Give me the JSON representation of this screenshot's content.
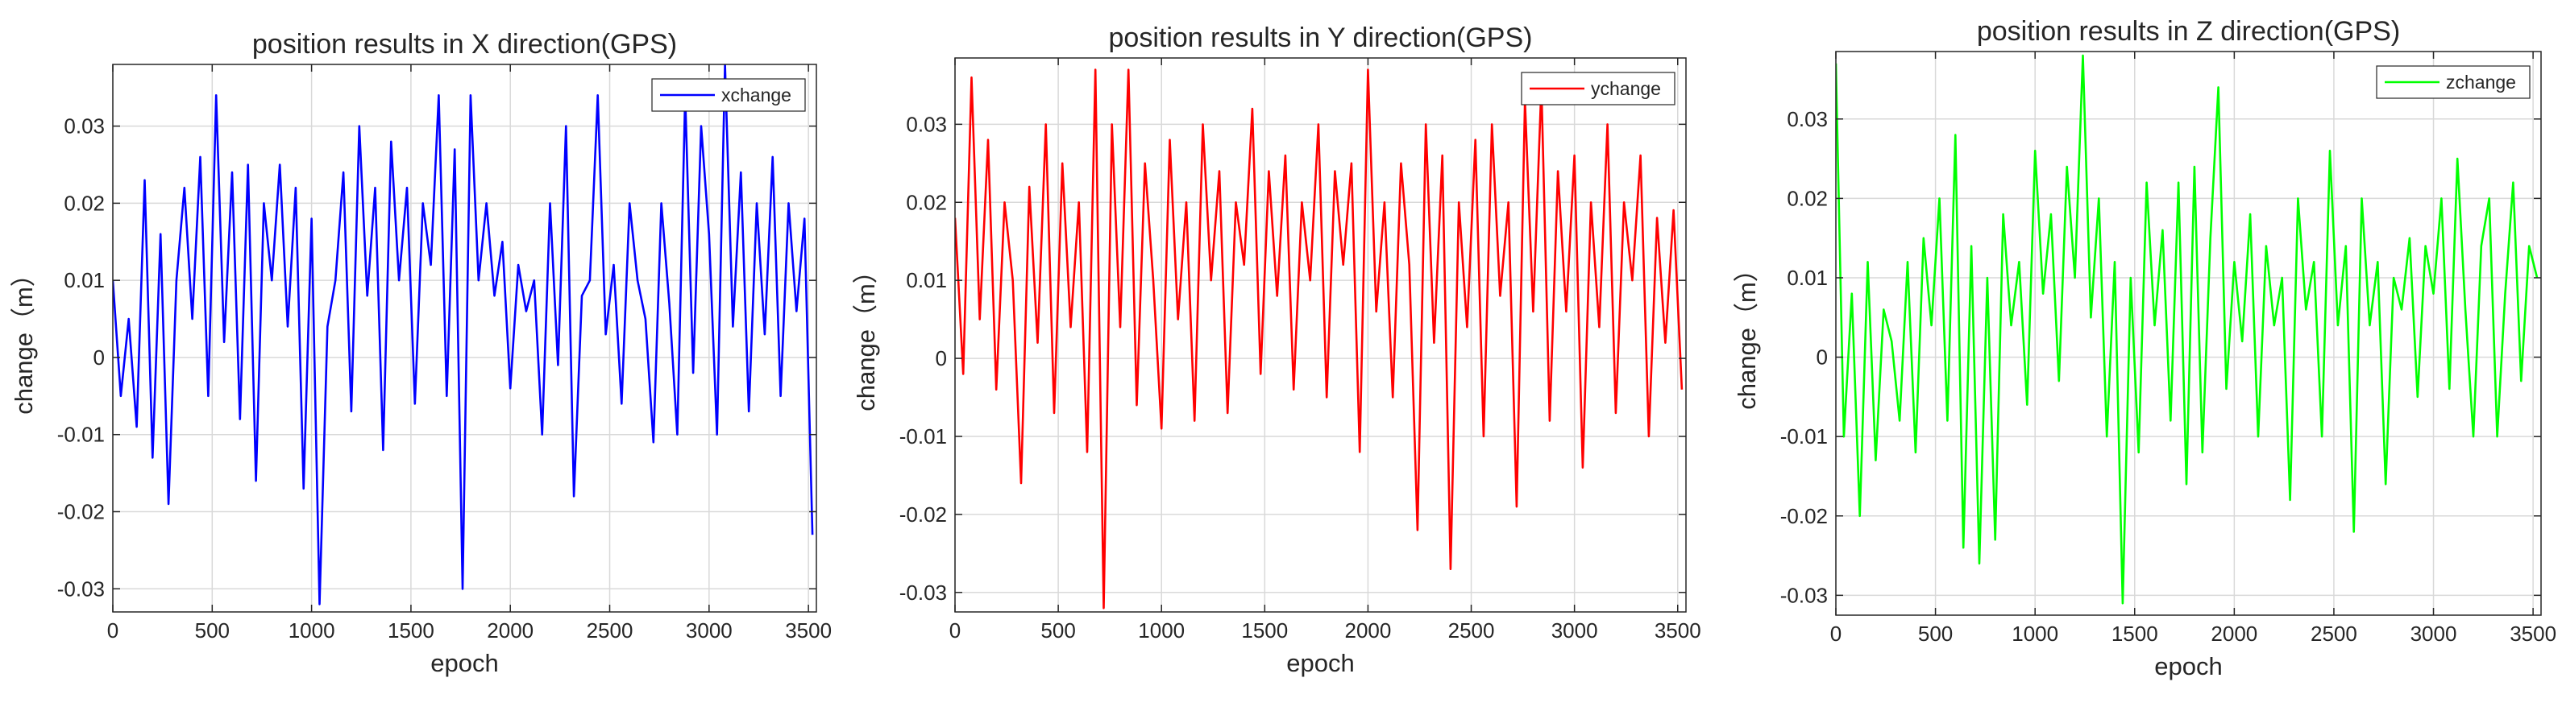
{
  "chart_data": [
    {
      "type": "line",
      "title": "position results in X direction(GPS)",
      "xlabel": "epoch",
      "ylabel": "change（m）",
      "xlim": [
        0,
        3540
      ],
      "ylim": [
        -0.033,
        0.038
      ],
      "xticks": [
        0,
        500,
        1000,
        1500,
        2000,
        2500,
        3000,
        3500
      ],
      "xtick_labels": [
        "0",
        "500",
        "1000",
        "1500",
        "2000",
        "2500",
        "3000",
        "3500"
      ],
      "yticks": [
        -0.03,
        -0.02,
        -0.01,
        0,
        0.01,
        0.02,
        0.03
      ],
      "ytick_labels": [
        "-0.03",
        "-0.02",
        "-0.01",
        "0",
        "0.01",
        "0.02",
        "0.03"
      ],
      "grid": true,
      "legend_position": "top-right",
      "series": [
        {
          "name": "xchange",
          "color": "#0000ff",
          "x": [
            0,
            40,
            80,
            120,
            160,
            200,
            240,
            280,
            320,
            360,
            400,
            440,
            480,
            520,
            560,
            600,
            640,
            680,
            720,
            760,
            800,
            840,
            880,
            920,
            960,
            1000,
            1040,
            1080,
            1120,
            1160,
            1200,
            1240,
            1280,
            1320,
            1360,
            1400,
            1440,
            1480,
            1520,
            1560,
            1600,
            1640,
            1680,
            1720,
            1760,
            1800,
            1840,
            1880,
            1920,
            1960,
            2000,
            2040,
            2080,
            2120,
            2160,
            2200,
            2240,
            2280,
            2320,
            2360,
            2400,
            2440,
            2480,
            2520,
            2560,
            2600,
            2640,
            2680,
            2720,
            2760,
            2800,
            2840,
            2880,
            2920,
            2960,
            3000,
            3040,
            3080,
            3120,
            3160,
            3200,
            3240,
            3280,
            3320,
            3360,
            3400,
            3440,
            3480,
            3520
          ],
          "y": [
            0.01,
            -0.005,
            0.005,
            -0.009,
            0.023,
            -0.013,
            0.016,
            -0.019,
            0.01,
            0.022,
            0.005,
            0.026,
            -0.005,
            0.034,
            0.002,
            0.024,
            -0.008,
            0.025,
            -0.016,
            0.02,
            0.01,
            0.025,
            0.004,
            0.022,
            -0.017,
            0.018,
            -0.032,
            0.004,
            0.01,
            0.024,
            -0.007,
            0.03,
            0.008,
            0.022,
            -0.012,
            0.028,
            0.01,
            0.022,
            -0.006,
            0.02,
            0.012,
            0.034,
            -0.005,
            0.027,
            -0.03,
            0.034,
            0.01,
            0.02,
            0.008,
            0.015,
            -0.004,
            0.012,
            0.006,
            0.01,
            -0.01,
            0.02,
            -0.001,
            0.03,
            -0.018,
            0.008,
            0.01,
            0.034,
            0.003,
            0.012,
            -0.006,
            0.02,
            0.01,
            0.005,
            -0.011,
            0.02,
            0.007,
            -0.01,
            0.034,
            -0.002,
            0.03,
            0.016,
            -0.01,
            0.038,
            0.004,
            0.024,
            -0.007,
            0.02,
            0.003,
            0.026,
            -0.005,
            0.02,
            0.006,
            0.018,
            -0.023
          ]
        }
      ]
    },
    {
      "type": "line",
      "title": "position results in Y direction(GPS)",
      "xlabel": "epoch",
      "ylabel": "change（m）",
      "xlim": [
        0,
        3540
      ],
      "ylim": [
        -0.0325,
        0.0385
      ],
      "xticks": [
        0,
        500,
        1000,
        1500,
        2000,
        2500,
        3000,
        3500
      ],
      "xtick_labels": [
        "0",
        "500",
        "1000",
        "1500",
        "2000",
        "2500",
        "3000",
        "3500"
      ],
      "yticks": [
        -0.03,
        -0.02,
        -0.01,
        0,
        0.01,
        0.02,
        0.03
      ],
      "ytick_labels": [
        "-0.03",
        "-0.02",
        "-0.01",
        "0",
        "0.01",
        "0.02",
        "0.03"
      ],
      "grid": true,
      "legend_position": "top-right",
      "series": [
        {
          "name": "ychange",
          "color": "#ff0000",
          "x": [
            0,
            40,
            80,
            120,
            160,
            200,
            240,
            280,
            320,
            360,
            400,
            440,
            480,
            520,
            560,
            600,
            640,
            680,
            720,
            760,
            800,
            840,
            880,
            920,
            960,
            1000,
            1040,
            1080,
            1120,
            1160,
            1200,
            1240,
            1280,
            1320,
            1360,
            1400,
            1440,
            1480,
            1520,
            1560,
            1600,
            1640,
            1680,
            1720,
            1760,
            1800,
            1840,
            1880,
            1920,
            1960,
            2000,
            2040,
            2080,
            2120,
            2160,
            2200,
            2240,
            2280,
            2320,
            2360,
            2400,
            2440,
            2480,
            2520,
            2560,
            2600,
            2640,
            2680,
            2720,
            2760,
            2800,
            2840,
            2880,
            2920,
            2960,
            3000,
            3040,
            3080,
            3120,
            3160,
            3200,
            3240,
            3280,
            3320,
            3360,
            3400,
            3440,
            3480,
            3520
          ],
          "y": [
            0.018,
            -0.002,
            0.036,
            0.005,
            0.028,
            -0.004,
            0.02,
            0.01,
            -0.016,
            0.022,
            0.002,
            0.03,
            -0.007,
            0.025,
            0.004,
            0.02,
            -0.012,
            0.037,
            -0.032,
            0.03,
            0.004,
            0.037,
            -0.006,
            0.025,
            0.01,
            -0.009,
            0.028,
            0.005,
            0.02,
            -0.008,
            0.03,
            0.01,
            0.024,
            -0.007,
            0.02,
            0.012,
            0.032,
            -0.002,
            0.024,
            0.008,
            0.026,
            -0.004,
            0.02,
            0.01,
            0.03,
            -0.005,
            0.024,
            0.012,
            0.025,
            -0.012,
            0.037,
            0.006,
            0.02,
            -0.005,
            0.025,
            0.012,
            -0.022,
            0.03,
            0.002,
            0.026,
            -0.027,
            0.02,
            0.004,
            0.028,
            -0.01,
            0.03,
            0.008,
            0.02,
            -0.019,
            0.033,
            0.006,
            0.035,
            -0.008,
            0.024,
            0.006,
            0.026,
            -0.014,
            0.02,
            0.004,
            0.03,
            -0.007,
            0.02,
            0.01,
            0.026,
            -0.01,
            0.018,
            0.002,
            0.019,
            -0.004
          ]
        }
      ]
    },
    {
      "type": "line",
      "title": "position results in Z direction(GPS)",
      "xlabel": "epoch",
      "ylabel": "change（m）",
      "xlim": [
        0,
        3540
      ],
      "ylim": [
        -0.0325,
        0.0385
      ],
      "xticks": [
        0,
        500,
        1000,
        1500,
        2000,
        2500,
        3000,
        3500
      ],
      "xtick_labels": [
        "0",
        "500",
        "1000",
        "1500",
        "2000",
        "2500",
        "3000",
        "3500"
      ],
      "yticks": [
        -0.03,
        -0.02,
        -0.01,
        0,
        0.01,
        0.02,
        0.03
      ],
      "ytick_labels": [
        "-0.03",
        "-0.02",
        "-0.01",
        "0",
        "0.01",
        "0.02",
        "0.03"
      ],
      "grid": true,
      "legend_position": "top-right",
      "series": [
        {
          "name": "zchange",
          "color": "#00ff00",
          "x": [
            0,
            40,
            80,
            120,
            160,
            200,
            240,
            280,
            320,
            360,
            400,
            440,
            480,
            520,
            560,
            600,
            640,
            680,
            720,
            760,
            800,
            840,
            880,
            920,
            960,
            1000,
            1040,
            1080,
            1120,
            1160,
            1200,
            1240,
            1280,
            1320,
            1360,
            1400,
            1440,
            1480,
            1520,
            1560,
            1600,
            1640,
            1680,
            1720,
            1760,
            1800,
            1840,
            1880,
            1920,
            1960,
            2000,
            2040,
            2080,
            2120,
            2160,
            2200,
            2240,
            2280,
            2320,
            2360,
            2400,
            2440,
            2480,
            2520,
            2560,
            2600,
            2640,
            2680,
            2720,
            2760,
            2800,
            2840,
            2880,
            2920,
            2960,
            3000,
            3040,
            3080,
            3120,
            3160,
            3200,
            3240,
            3280,
            3320,
            3360,
            3400,
            3440,
            3480,
            3520
          ],
          "y": [
            0.037,
            -0.01,
            0.008,
            -0.02,
            0.012,
            -0.013,
            0.006,
            0.002,
            -0.008,
            0.012,
            -0.012,
            0.015,
            0.004,
            0.02,
            -0.008,
            0.028,
            -0.024,
            0.014,
            -0.026,
            0.01,
            -0.023,
            0.018,
            0.004,
            0.012,
            -0.006,
            0.026,
            0.008,
            0.018,
            -0.003,
            0.024,
            0.01,
            0.038,
            0.005,
            0.02,
            -0.01,
            0.012,
            -0.031,
            0.01,
            -0.012,
            0.022,
            0.004,
            0.016,
            -0.008,
            0.022,
            -0.016,
            0.024,
            -0.012,
            0.015,
            0.034,
            -0.004,
            0.012,
            0.002,
            0.018,
            -0.01,
            0.014,
            0.004,
            0.01,
            -0.018,
            0.02,
            0.006,
            0.012,
            -0.01,
            0.026,
            0.004,
            0.014,
            -0.022,
            0.02,
            0.004,
            0.012,
            -0.016,
            0.01,
            0.006,
            0.015,
            -0.005,
            0.014,
            0.008,
            0.02,
            -0.004,
            0.025,
            0.006,
            -0.01,
            0.014,
            0.02,
            -0.01,
            0.008,
            0.022,
            -0.003,
            0.014,
            0.01
          ]
        }
      ]
    }
  ]
}
